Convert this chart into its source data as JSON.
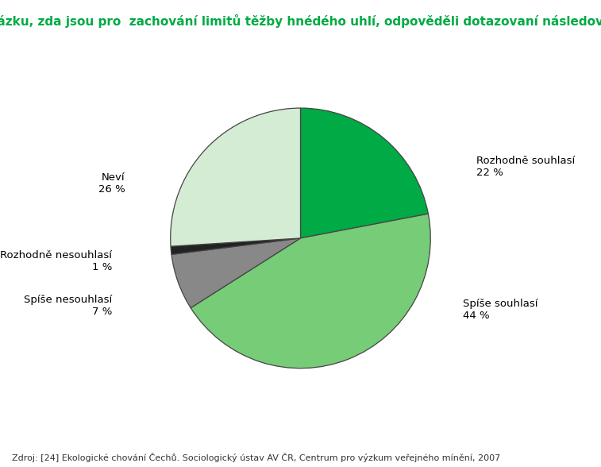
{
  "title": "Otázku, zda jsou pro  zachování limitů těžby hnédého uhlí, odpověděli dotazovaní následovně",
  "slices": [
    {
      "label": "Rozhodně souhlasí\n22 %",
      "value": 22,
      "color": "#00aa44"
    },
    {
      "label": "Spíše souhlasí\n44 %",
      "value": 44,
      "color": "#77cc77"
    },
    {
      "label": "Spíše nesouhlasí\n7 %",
      "value": 7,
      "color": "#888888"
    },
    {
      "label": "Rozhodně nesouhlasí\n1 %",
      "value": 1,
      "color": "#222222"
    },
    {
      "label": "Neví\n26 %",
      "value": 26,
      "color": "#d4ecd4"
    }
  ],
  "title_color": "#00aa44",
  "title_fontsize": 11,
  "source_text": "Zdroj: [24] Ekologické chování Čechů. Sociologický ústav AV ČR, Centrum pro výzkum veřejného mínění, 2007",
  "source_fontsize": 8,
  "background_color": "#ffffff",
  "edge_color": "#444444",
  "label_fontsize": 9.5,
  "startangle": 90,
  "figsize": [
    7.57,
    5.88
  ],
  "dpi": 100,
  "label_positions": [
    [
      1.35,
      0.55,
      "left"
    ],
    [
      1.25,
      -0.55,
      "left"
    ],
    [
      -1.45,
      -0.52,
      "right"
    ],
    [
      -1.45,
      -0.18,
      "right"
    ],
    [
      -1.35,
      0.42,
      "right"
    ]
  ]
}
